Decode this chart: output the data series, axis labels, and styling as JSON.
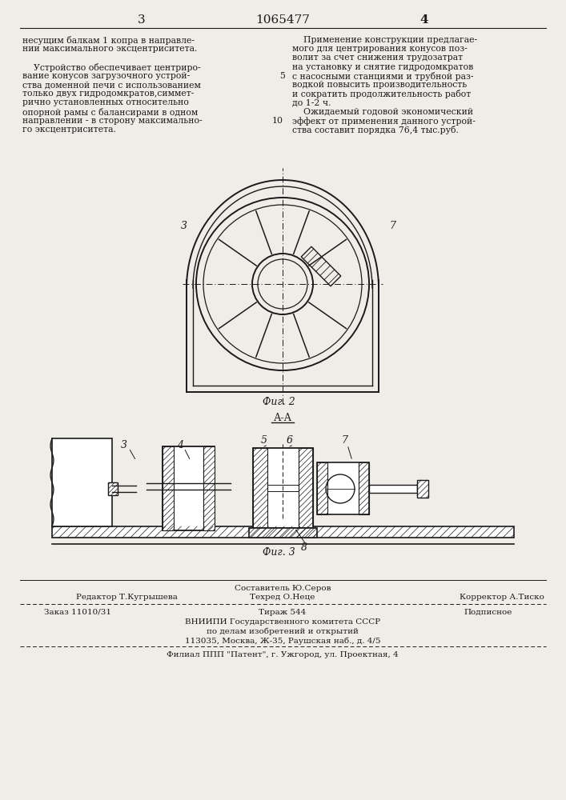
{
  "page_number_left": "3",
  "page_number_right": "4",
  "patent_number": "1065477",
  "text_left_lines": [
    "несущим балкам 1 копра в направле-",
    "нии максимального эксцентриситета.",
    "",
    "    Устройство обеспечивает центриро-",
    "вание конусов загрузочного устрой-",
    "ства доменной печи с использованием",
    "только двух гидродомкратов,симмет-",
    "рично установленных относительно",
    "опорной рамы с балансирами в одном",
    "направлении - в сторону максимально-",
    "го эксцентриситета."
  ],
  "text_right_lines": [
    "    Применение конструкции предлагае-",
    "мого для центрирования конусов поз-",
    "волит за счет снижения трудозатрат",
    "на установку и снятие гидродомкратов",
    "с насосными станциями и трубной раз-",
    "водкой повысить производительность",
    "и сократить продолжительность работ",
    "до 1-2 ч.",
    "    Ожидаемый годовой экономический",
    "эффект от применения данного устрой-",
    "ства составит порядка 76,4 тыс.руб."
  ],
  "line_num_5_row": 4,
  "line_num_10_row": 9,
  "fig2_label": "Фиг. 2",
  "fig3_label": "Фиг. 3",
  "section_label": "А-А",
  "footer_composer_top": "Составитель Ю.Серов",
  "footer_techred": "Техред О.Неце",
  "footer_editor": "Редактор Т.Кугрышева",
  "footer_corrector": "Корректор А.Тиско",
  "footer_order": "Заказ 11010/31",
  "footer_print": "Тираж 544",
  "footer_subscription": "Подписное",
  "footer_vnipi": "ВНИИПИ Государственного комитета СССР",
  "footer_affairs": "по делам изобретений и открытий",
  "footer_address": "113035, Москва, Ж-35, Раушская наб., д. 4/5",
  "footer_branch": "Филиал ППП \"Патент\", г. Ужгород, ул. Проектная, 4",
  "bg_color": "#f0ede8",
  "line_color": "#1a1a1a",
  "hatch_color": "#333333"
}
